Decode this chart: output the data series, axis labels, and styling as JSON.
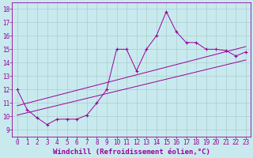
{
  "xlabel": "Windchill (Refroidissement éolien,°C)",
  "ylabel": "",
  "background_color": "#c8eaee",
  "grid_color": "#aacccc",
  "line_color": "#990099",
  "xlim": [
    -0.5,
    23.5
  ],
  "ylim": [
    8.5,
    18.5
  ],
  "yticks": [
    9,
    10,
    11,
    12,
    13,
    14,
    15,
    16,
    17,
    18
  ],
  "xticks": [
    0,
    1,
    2,
    3,
    4,
    5,
    6,
    7,
    8,
    9,
    10,
    11,
    12,
    13,
    14,
    15,
    16,
    17,
    18,
    19,
    20,
    21,
    22,
    23
  ],
  "series1_x": [
    0,
    1,
    2,
    3,
    4,
    5,
    6,
    7,
    8,
    9,
    10,
    11,
    12,
    13,
    14,
    15,
    16,
    17,
    18,
    19,
    20,
    21,
    22,
    23
  ],
  "series1_y": [
    12.0,
    10.5,
    9.9,
    9.4,
    9.8,
    9.8,
    9.8,
    10.1,
    11.0,
    12.0,
    15.0,
    15.0,
    13.4,
    15.0,
    16.0,
    17.8,
    16.3,
    15.5,
    15.5,
    15.0,
    15.0,
    14.9,
    14.5,
    14.8
  ],
  "series2_x": [
    0,
    23
  ],
  "series2_y": [
    10.8,
    15.2
  ],
  "series3_x": [
    0,
    23
  ],
  "series3_y": [
    10.1,
    14.2
  ],
  "xlabel_fontsize": 6.5,
  "tick_fontsize": 5.5,
  "marker": "+",
  "markersize": 3.5,
  "linewidth": 0.7
}
